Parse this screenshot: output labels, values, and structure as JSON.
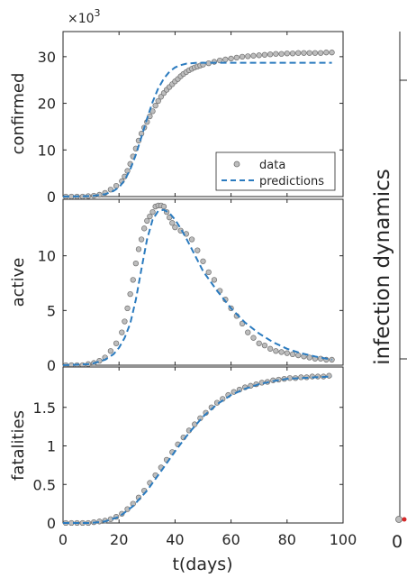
{
  "figure": {
    "xlabel": "t(days)",
    "right_title": "infection dynamics",
    "x_ticks": [
      "0",
      "20",
      "40",
      "60",
      "80",
      "100"
    ],
    "right_x_tick": "0",
    "multiplier_base": "×10",
    "multiplier_exp": "3"
  },
  "legend": {
    "data_label": "data",
    "predictions_label": "predictions"
  },
  "colors": {
    "data_fill": "#bdbdbd",
    "data_edge": "#6e6e6e",
    "prediction": "#2b7bbf",
    "axis": "#262626",
    "marker_red": "#d62728"
  },
  "chart_data": [
    {
      "type": "scatter",
      "title": "",
      "xlabel": "",
      "ylabel": "confirmed",
      "xlim": [
        0,
        100
      ],
      "ylim": [
        0,
        35
      ],
      "y_ticks": [
        "0",
        "10",
        "20",
        "30"
      ],
      "y_tick_values": [
        0,
        10,
        20,
        30
      ],
      "legend_position": "bottom-right",
      "series": [
        {
          "name": "data",
          "style": "markers",
          "x": [
            1,
            3,
            5,
            7,
            9,
            11,
            13,
            15,
            17,
            19,
            21,
            22,
            23,
            24,
            25,
            26,
            27,
            28,
            29,
            30,
            31,
            32,
            33,
            34,
            35,
            36,
            37,
            38,
            39,
            40,
            41,
            42,
            43,
            44,
            45,
            46,
            47,
            48,
            49,
            50,
            52,
            54,
            56,
            58,
            60,
            62,
            64,
            66,
            68,
            70,
            72,
            74,
            76,
            78,
            80,
            82,
            84,
            86,
            88,
            90,
            92,
            94,
            96
          ],
          "y": [
            0,
            0,
            0,
            0,
            0.1,
            0.2,
            0.4,
            0.8,
            1.5,
            2.3,
            3.3,
            4.3,
            5.5,
            7.0,
            8.6,
            10.3,
            12.0,
            13.5,
            14.8,
            16.0,
            17.2,
            18.3,
            19.5,
            20.5,
            21.4,
            22.2,
            22.9,
            23.5,
            24.1,
            24.7,
            25.2,
            25.8,
            26.3,
            26.7,
            27.1,
            27.4,
            27.7,
            27.9,
            28.1,
            28.3,
            28.6,
            28.9,
            29.2,
            29.4,
            29.6,
            29.8,
            30.0,
            30.1,
            30.2,
            30.3,
            30.4,
            30.5,
            30.6,
            30.6,
            30.7,
            30.7,
            30.8,
            30.8,
            30.8,
            30.8,
            30.8,
            30.9,
            30.9
          ]
        },
        {
          "name": "predictions",
          "style": "dashed",
          "x": [
            0,
            10,
            15,
            18,
            20,
            22,
            24,
            26,
            28,
            30,
            32,
            34,
            36,
            38,
            40,
            42,
            44,
            46,
            48,
            50,
            55,
            60,
            70,
            80,
            90,
            96
          ],
          "y": [
            0,
            0.1,
            0.5,
            1.2,
            2.0,
            3.5,
            5.8,
            9.0,
            12.8,
            16.7,
            20.3,
            23.2,
            25.3,
            26.8,
            27.7,
            28.2,
            28.5,
            28.6,
            28.7,
            28.7,
            28.7,
            28.7,
            28.7,
            28.7,
            28.7,
            28.7
          ]
        }
      ]
    },
    {
      "type": "scatter",
      "title": "",
      "xlabel": "",
      "ylabel": "active",
      "xlim": [
        0,
        100
      ],
      "ylim": [
        0,
        15
      ],
      "y_ticks": [
        "0",
        "5",
        "10"
      ],
      "y_tick_values": [
        0,
        5,
        10
      ],
      "series": [
        {
          "name": "data",
          "style": "markers",
          "x": [
            1,
            3,
            5,
            7,
            9,
            11,
            13,
            15,
            17,
            19,
            21,
            22,
            23,
            24,
            25,
            26,
            27,
            28,
            29,
            30,
            31,
            32,
            33,
            34,
            35,
            36,
            37,
            38,
            39,
            40,
            42,
            44,
            46,
            48,
            50,
            52,
            54,
            56,
            58,
            60,
            62,
            64,
            66,
            68,
            70,
            72,
            74,
            76,
            78,
            80,
            82,
            84,
            86,
            88,
            90,
            92,
            94,
            96
          ],
          "y": [
            0,
            0,
            0,
            0,
            0.1,
            0.2,
            0.4,
            0.7,
            1.3,
            2.0,
            3.0,
            4.0,
            5.2,
            6.5,
            7.8,
            9.3,
            10.6,
            11.5,
            12.5,
            13.2,
            13.6,
            14.0,
            14.5,
            14.6,
            14.6,
            14.5,
            14.0,
            13.5,
            13.0,
            12.6,
            12.3,
            12.0,
            11.5,
            10.5,
            9.5,
            8.5,
            7.8,
            6.8,
            6.0,
            5.2,
            4.5,
            3.8,
            3.0,
            2.5,
            2.0,
            1.8,
            1.5,
            1.3,
            1.2,
            1.1,
            1.0,
            0.9,
            0.8,
            0.7,
            0.6,
            0.6,
            0.5,
            0.5
          ]
        },
        {
          "name": "predictions",
          "style": "dashed",
          "x": [
            0,
            10,
            15,
            18,
            20,
            22,
            24,
            26,
            28,
            30,
            32,
            34,
            36,
            38,
            40,
            42,
            44,
            46,
            48,
            50,
            55,
            60,
            65,
            70,
            75,
            80,
            85,
            90,
            96
          ],
          "y": [
            0,
            0.1,
            0.5,
            1.0,
            1.6,
            2.5,
            3.8,
            6.0,
            8.8,
            11.5,
            13.3,
            14.1,
            14.2,
            13.9,
            13.3,
            12.5,
            11.6,
            10.6,
            9.6,
            8.6,
            6.8,
            5.2,
            3.9,
            2.9,
            2.1,
            1.5,
            1.1,
            0.8,
            0.5
          ]
        }
      ]
    },
    {
      "type": "scatter",
      "title": "",
      "xlabel": "t(days)",
      "ylabel": "fatalities",
      "xlim": [
        0,
        100
      ],
      "ylim": [
        0,
        2
      ],
      "y_ticks": [
        "0",
        "0.5",
        "1",
        "1.5"
      ],
      "y_tick_values": [
        0,
        0.5,
        1,
        1.5
      ],
      "series": [
        {
          "name": "data",
          "style": "markers",
          "x": [
            1,
            3,
            5,
            7,
            9,
            11,
            13,
            15,
            17,
            19,
            21,
            23,
            25,
            27,
            29,
            31,
            33,
            35,
            37,
            39,
            41,
            43,
            45,
            47,
            49,
            51,
            53,
            55,
            57,
            59,
            61,
            63,
            65,
            67,
            69,
            71,
            73,
            75,
            77,
            79,
            81,
            83,
            85,
            87,
            89,
            91,
            93,
            95
          ],
          "y": [
            0,
            0,
            0,
            0,
            0,
            0.01,
            0.02,
            0.03,
            0.05,
            0.08,
            0.12,
            0.18,
            0.25,
            0.33,
            0.42,
            0.52,
            0.62,
            0.72,
            0.82,
            0.92,
            1.02,
            1.11,
            1.2,
            1.28,
            1.36,
            1.43,
            1.5,
            1.56,
            1.61,
            1.66,
            1.7,
            1.73,
            1.76,
            1.78,
            1.8,
            1.82,
            1.83,
            1.85,
            1.86,
            1.87,
            1.88,
            1.88,
            1.89,
            1.89,
            1.9,
            1.9,
            1.9,
            1.91
          ]
        },
        {
          "name": "predictions",
          "style": "dashed",
          "x": [
            0,
            10,
            15,
            20,
            25,
            30,
            35,
            40,
            45,
            50,
            55,
            60,
            65,
            70,
            75,
            80,
            85,
            90,
            96
          ],
          "y": [
            0,
            0,
            0.02,
            0.08,
            0.22,
            0.42,
            0.67,
            0.93,
            1.17,
            1.38,
            1.54,
            1.66,
            1.74,
            1.8,
            1.84,
            1.87,
            1.88,
            1.89,
            1.9
          ]
        }
      ]
    }
  ]
}
